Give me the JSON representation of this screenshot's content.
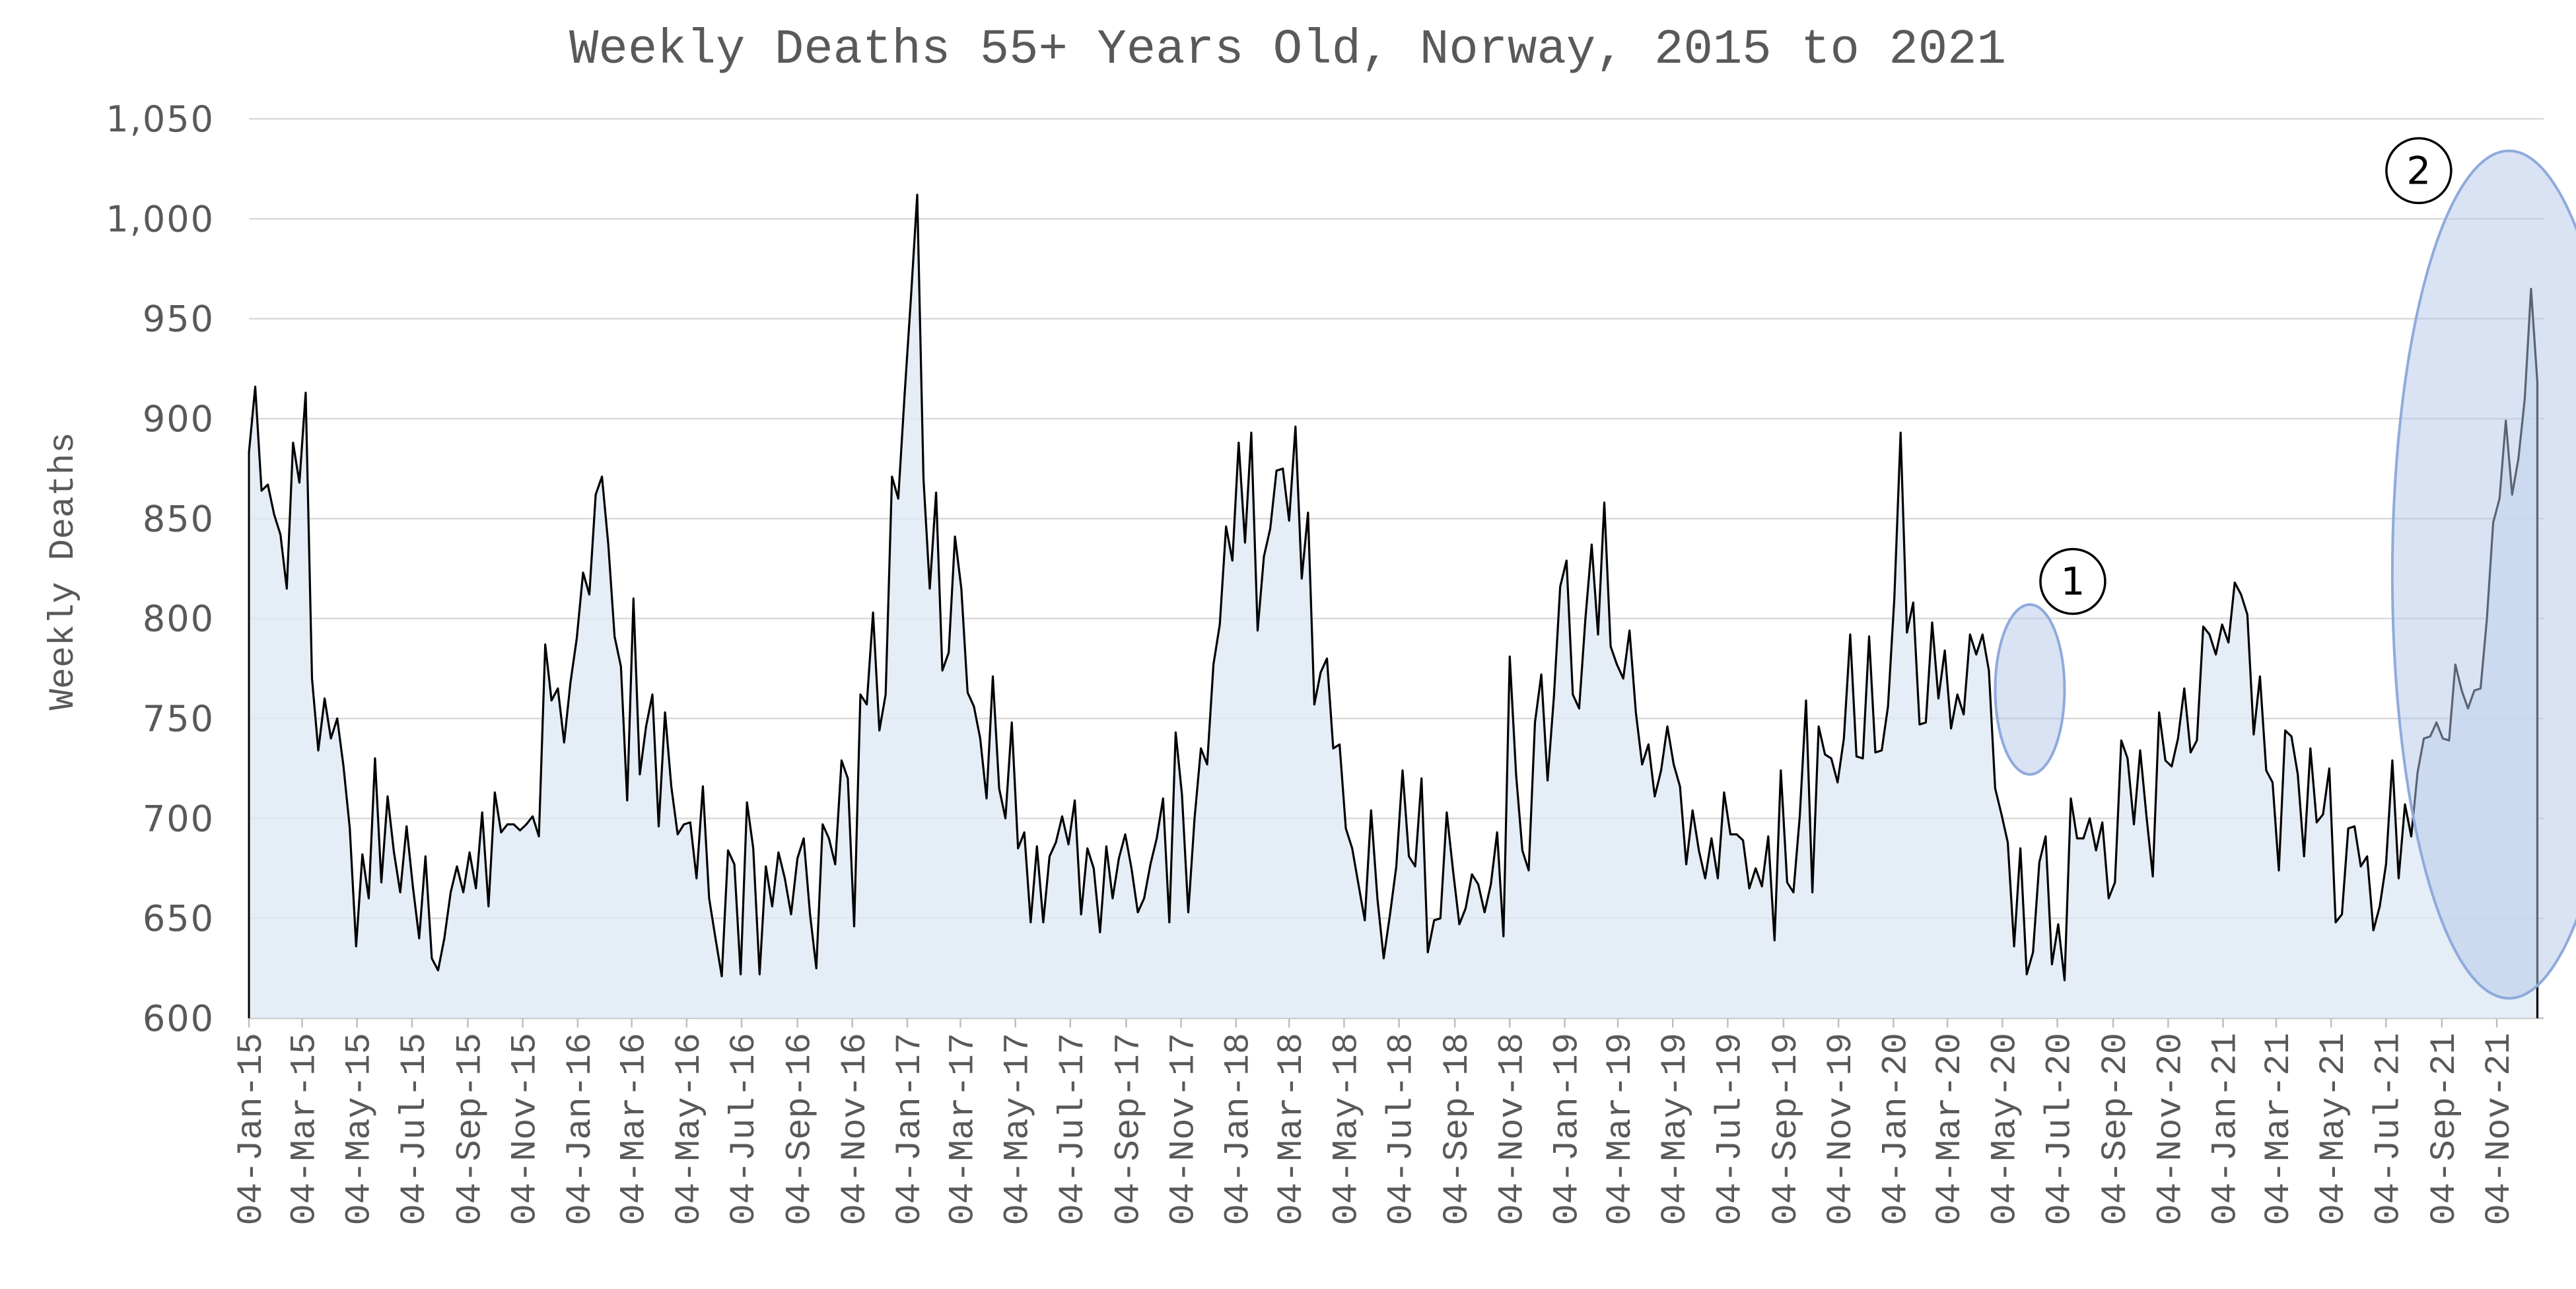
{
  "chart_data": {
    "type": "area",
    "title": "Weekly Deaths 55+ Years Old, Norway, 2015 to 2021",
    "ylabel": "Weekly Deaths",
    "xlabel": "",
    "ylim": [
      600,
      1050
    ],
    "yticks": [
      600,
      650,
      700,
      750,
      800,
      850,
      900,
      950,
      1000,
      1050
    ],
    "ytick_labels": [
      "600",
      "650",
      "700",
      "750",
      "800",
      "850",
      "900",
      "950",
      "1,000",
      "1,050"
    ],
    "grid": true,
    "legend": "none",
    "x_start": "2015-01-04",
    "x_interval_days": 7,
    "xtick_labels": [
      "04-Jan-15",
      "04-Mar-15",
      "04-May-15",
      "04-Jul-15",
      "04-Sep-15",
      "04-Nov-15",
      "04-Jan-16",
      "04-Mar-16",
      "04-May-16",
      "04-Jul-16",
      "04-Sep-16",
      "04-Nov-16",
      "04-Jan-17",
      "04-Mar-17",
      "04-May-17",
      "04-Jul-17",
      "04-Sep-17",
      "04-Nov-17",
      "04-Jan-18",
      "04-Mar-18",
      "04-May-18",
      "04-Jul-18",
      "04-Sep-18",
      "04-Nov-18",
      "04-Jan-19",
      "04-Mar-19",
      "04-May-19",
      "04-Jul-19",
      "04-Sep-19",
      "04-Nov-19",
      "04-Jan-20",
      "04-Mar-20",
      "04-May-20",
      "04-Jul-20",
      "04-Sep-20",
      "04-Nov-20",
      "04-Jan-21",
      "04-Mar-21",
      "04-May-21",
      "04-Jul-21",
      "04-Sep-21",
      "04-Nov-21"
    ],
    "series": [
      {
        "name": "",
        "values": [
          883,
          916,
          864,
          867,
          852,
          842,
          815,
          888,
          868,
          913,
          770,
          734,
          760,
          740,
          750,
          726,
          695,
          636,
          682,
          660,
          730,
          668,
          711,
          683,
          663,
          696,
          666,
          640,
          681,
          630,
          624,
          640,
          663,
          676,
          663,
          683,
          665,
          703,
          656,
          713,
          693,
          697,
          697,
          694,
          697,
          701,
          691,
          787,
          759,
          765,
          738,
          768,
          790,
          823,
          812,
          862,
          871,
          837,
          791,
          776,
          709,
          810,
          722,
          746,
          762,
          696,
          753,
          716,
          692,
          697,
          698,
          670,
          716,
          660,
          640,
          621,
          684,
          677,
          622,
          708,
          685,
          622,
          676,
          656,
          683,
          670,
          652,
          680,
          690,
          652,
          625,
          697,
          690,
          677,
          729,
          720,
          646,
          762,
          757,
          803,
          744,
          762,
          871,
          860,
          912,
          960,
          1012,
          870,
          815,
          863,
          774,
          783,
          841,
          815,
          763,
          756,
          740,
          710,
          771,
          715,
          700,
          748,
          685,
          693,
          648,
          686,
          648,
          681,
          688,
          701,
          687,
          709,
          652,
          685,
          675,
          643,
          686,
          660,
          680,
          692,
          675,
          653,
          660,
          677,
          690,
          710,
          648,
          743,
          712,
          653,
          700,
          735,
          727,
          777,
          797,
          846,
          829,
          888,
          838,
          893,
          794,
          831,
          845,
          874,
          875,
          849,
          896,
          820,
          853,
          757,
          773,
          780,
          735,
          737,
          695,
          685,
          667,
          649,
          704,
          660,
          630,
          652,
          676,
          724,
          681,
          676,
          720,
          633,
          649,
          650,
          703,
          674,
          647,
          655,
          672,
          667,
          653,
          667,
          693,
          641,
          781,
          722,
          684,
          674,
          748,
          772,
          719,
          761,
          816,
          829,
          762,
          755,
          800,
          837,
          792,
          858,
          786,
          777,
          770,
          794,
          753,
          727,
          737,
          711,
          724,
          746,
          727,
          716,
          677,
          704,
          684,
          670,
          690,
          670,
          713,
          692,
          692,
          689,
          665,
          675,
          666,
          691,
          639,
          724,
          668,
          663,
          701,
          759,
          663,
          746,
          732,
          730,
          718,
          740,
          792,
          731,
          730,
          791,
          733,
          734,
          756,
          810,
          893,
          793,
          808,
          747,
          748,
          798,
          760,
          784,
          745,
          762,
          752,
          792,
          782,
          792,
          774,
          715,
          702,
          688,
          636,
          685,
          622,
          633,
          678,
          691,
          627,
          647,
          619,
          710,
          690,
          690,
          700,
          684,
          698,
          660,
          668,
          739,
          730,
          697,
          734,
          701,
          671,
          753,
          729,
          726,
          740,
          765,
          733,
          739,
          796,
          792,
          782,
          797,
          788,
          818,
          812,
          802,
          742,
          771,
          724,
          718,
          674,
          744,
          741,
          722,
          681,
          735,
          698,
          702,
          725,
          648,
          652,
          695,
          696,
          676,
          681,
          644,
          656,
          677,
          729,
          670,
          707,
          691,
          723,
          740,
          741,
          748,
          740,
          739,
          777,
          764,
          755,
          764,
          765,
          800,
          848,
          860,
          899,
          862,
          880,
          910,
          965,
          918
        ]
      }
    ],
    "annotations": [
      {
        "label": "1",
        "week_from": 277,
        "week_to": 288,
        "y_from": 722,
        "y_to": 807
      },
      {
        "label": "2",
        "week_from": 340,
        "week_to": 377,
        "y_from": 610,
        "y_to": 1034
      }
    ]
  }
}
